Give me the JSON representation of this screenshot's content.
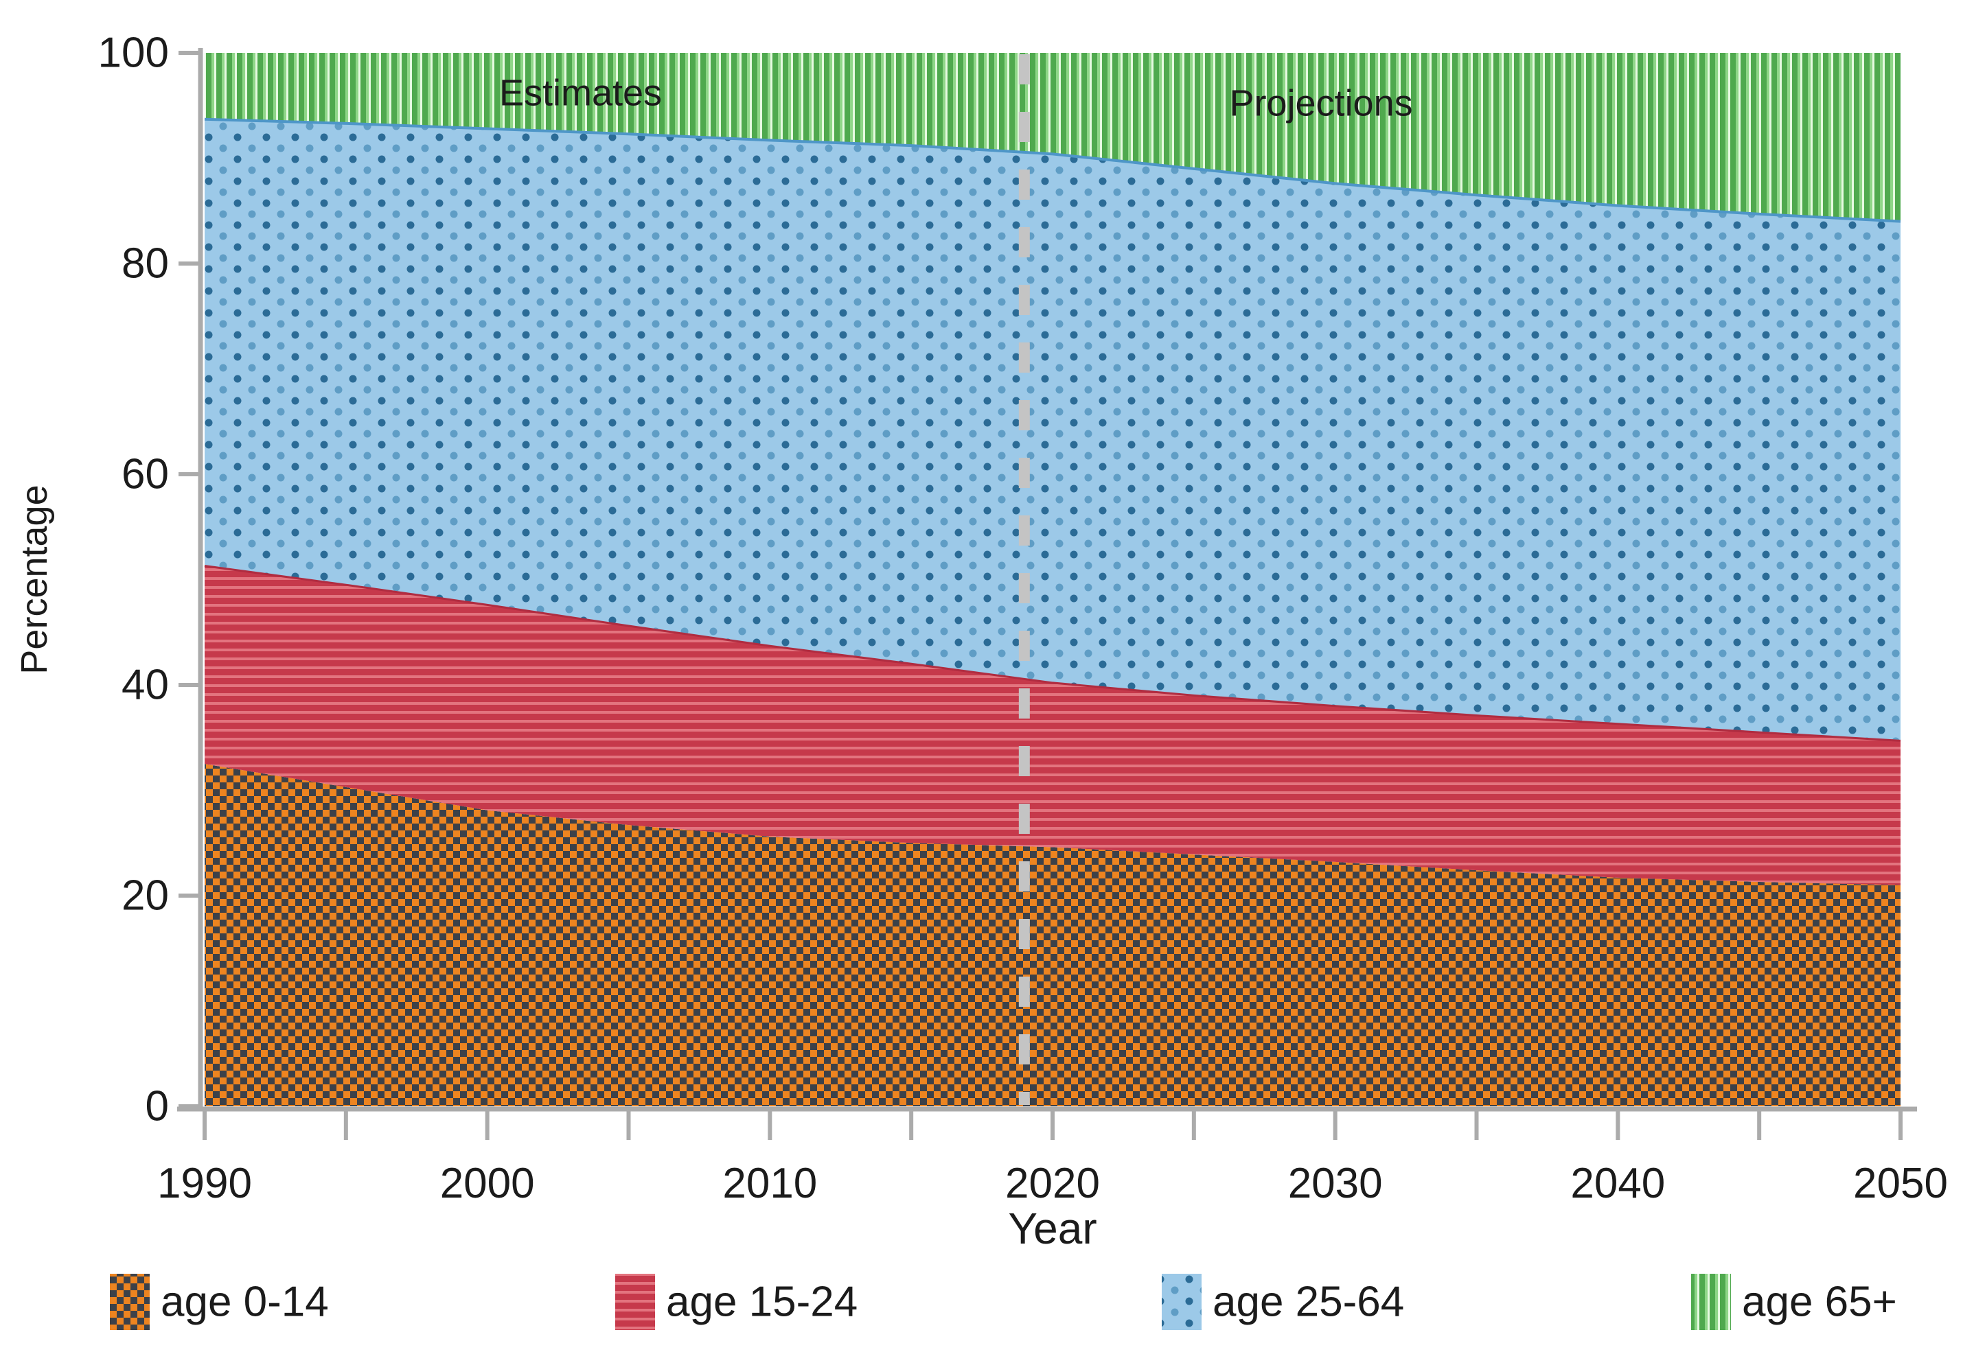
{
  "chart_data": {
    "type": "area",
    "stacked": true,
    "title": "",
    "xlabel": "Year",
    "ylabel": "Percentage",
    "xlim": [
      1990,
      2050
    ],
    "ylim": [
      0,
      100
    ],
    "grid": false,
    "legend_position": "bottom",
    "x": [
      1990,
      1995,
      2000,
      2005,
      2010,
      2015,
      2020,
      2025,
      2030,
      2035,
      2040,
      2045,
      2050
    ],
    "series": [
      {
        "id": "age-0-14",
        "name": "age 0-14",
        "fill_ref": "p-orange",
        "pattern": "orange-dark checkerboard",
        "values": [
          32.5,
          30.3,
          28.1,
          26.7,
          25.6,
          25.0,
          24.6,
          23.9,
          23.2,
          22.4,
          21.7,
          21.3,
          21.0
        ]
      },
      {
        "id": "age-15-24",
        "name": "age 15-24",
        "fill_ref": "p-red",
        "pattern": "red horizontal stripes",
        "values": [
          18.8,
          19.2,
          19.5,
          18.9,
          18.1,
          17.0,
          15.6,
          15.1,
          14.8,
          14.7,
          14.6,
          14.2,
          13.7
        ]
      },
      {
        "id": "age-25-64",
        "name": "age 25-64",
        "fill_ref": "p-blue",
        "pattern": "blue polka dots",
        "values": [
          42.4,
          43.8,
          45.2,
          46.7,
          48.0,
          49.2,
          50.2,
          50.0,
          49.6,
          49.4,
          49.2,
          49.2,
          49.3
        ]
      },
      {
        "id": "age-65up",
        "name": "age 65+",
        "fill_ref": "p-green",
        "pattern": "green vertical stripes",
        "values": [
          6.3,
          6.7,
          7.2,
          7.7,
          8.3,
          8.8,
          9.6,
          11.0,
          12.4,
          13.5,
          14.5,
          15.3,
          16.0
        ]
      }
    ],
    "yticks": [
      0,
      20,
      40,
      60,
      80,
      100
    ],
    "xticks_major": [
      1990,
      2000,
      2010,
      2020,
      2030,
      2040,
      2050
    ],
    "xticks_minor": [
      1995,
      2005,
      2015,
      2025,
      2035,
      2045
    ],
    "divider": {
      "year": 2019,
      "style": "dashed"
    },
    "annotations": [
      {
        "text": "Estimates",
        "year": 2003.3,
        "pct": 96.2
      },
      {
        "text": "Projections",
        "year": 2029.5,
        "pct": 95.2
      }
    ]
  },
  "colors": {
    "orange_base": "#ED8420",
    "orange_dark": "#3C4149",
    "red_base": "#C6394B",
    "red_stripe": "#E3747F",
    "red_edge": "#B02C40",
    "blue_bg": "#9CC9E8",
    "blue_dot_dark": "#2B6B96",
    "blue_dot_light": "#5F9DC5",
    "blue_edge": "#4E96C8",
    "green_base": "#4FA94E",
    "green_stripe": "#8FD688",
    "green_stripe_bright": "#E6FAE1",
    "axis": "#ABABAB",
    "divider": "#C4C4C4",
    "text": "#1B1B1B"
  }
}
